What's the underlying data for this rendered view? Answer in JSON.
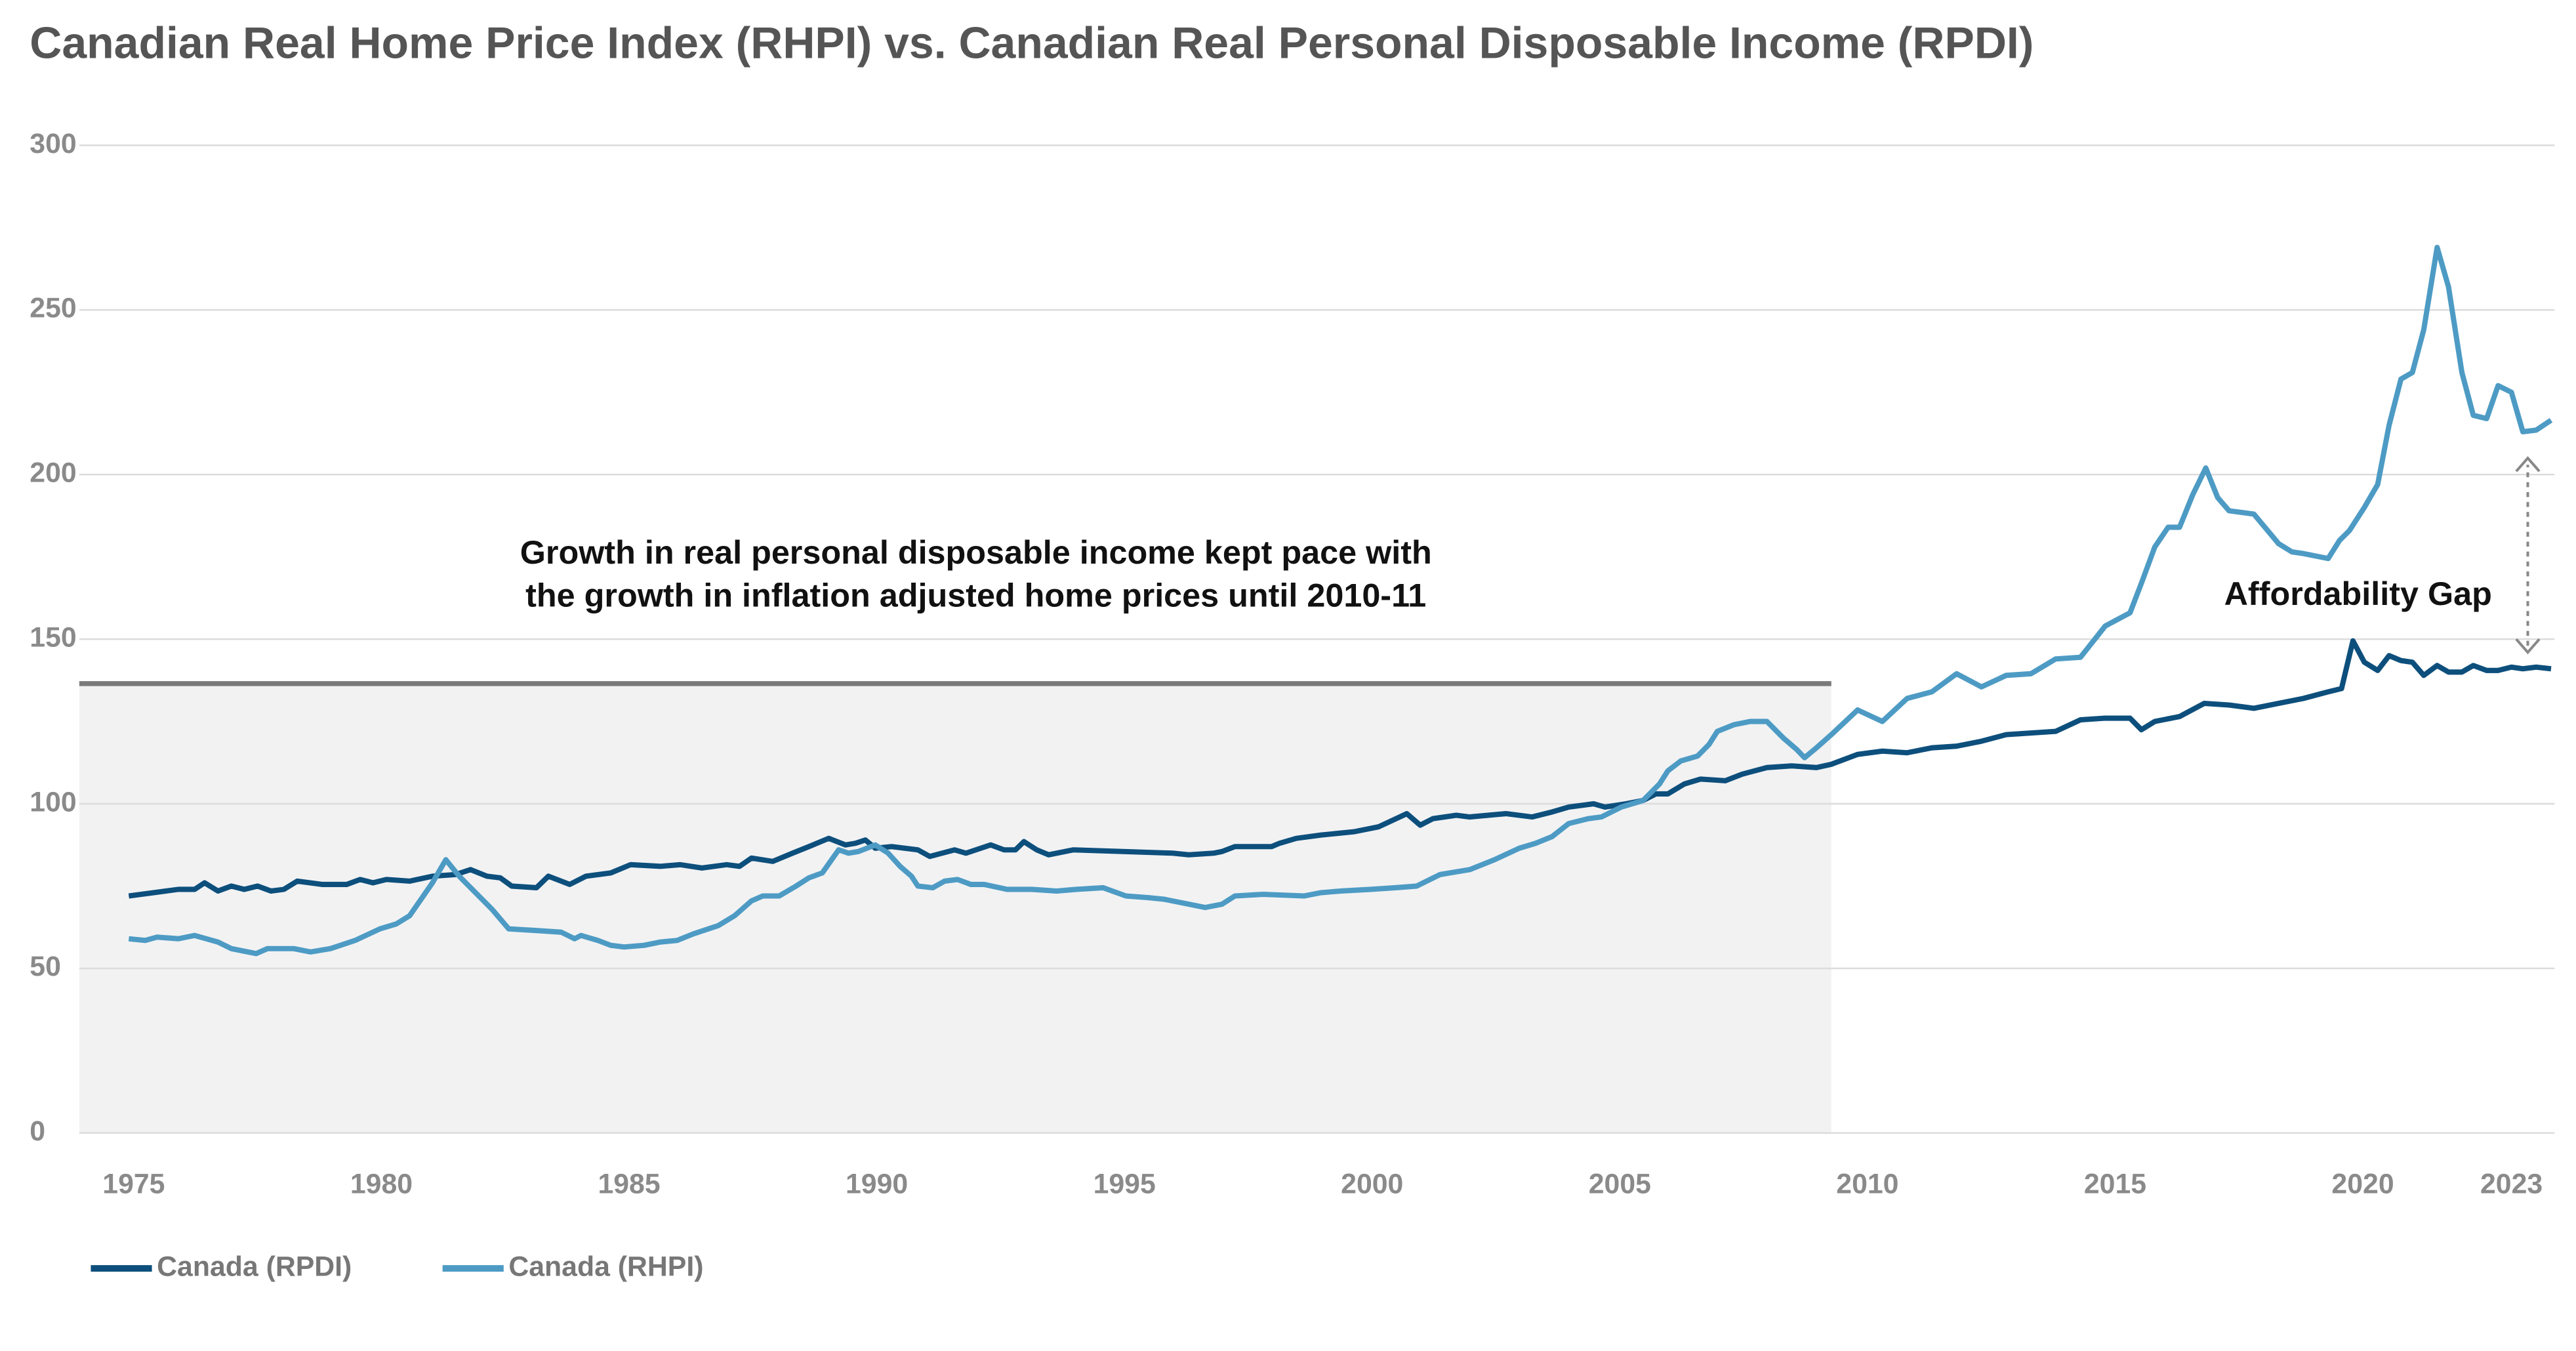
{
  "chart_data": {
    "type": "line",
    "title": "Canadian Real Home Price Index (RHPI) vs. Canadian Real Personal Disposable Income (RPDI)",
    "xlim": [
      1973.9,
      2023.87
    ],
    "ylim": [
      0,
      300
    ],
    "xticks": [
      1975,
      1980,
      1985,
      1990,
      1995,
      2000,
      2005,
      2010,
      2015,
      2020,
      2023
    ],
    "yticks": [
      0,
      50,
      100,
      150,
      200,
      250,
      300
    ],
    "grid": true,
    "legend": "bottom-left",
    "highlight": {
      "x": [
        1973.9,
        2009.27
      ],
      "y": 136.5
    },
    "annotation": [
      "Growth in real personal disposable income kept pace with",
      "the growth in inflation adjusted home prices until 2010-11"
    ],
    "gap": {
      "label": "Affordability Gap",
      "x": 2023.33,
      "from": 146,
      "to": 205
    },
    "series": [
      {
        "name": "Canada (RPDI)",
        "color": "#0d4f7c",
        "x": [
          1974.9,
          1975.4,
          1975.9,
          1976.23,
          1976.43,
          1976.7,
          1976.97,
          1977.23,
          1977.5,
          1977.77,
          1978.03,
          1978.3,
          1978.8,
          1979.3,
          1979.57,
          1979.83,
          1980.1,
          1980.57,
          1981.03,
          1981.5,
          1981.8,
          1982.13,
          1982.4,
          1982.63,
          1983.13,
          1983.37,
          1983.8,
          1984.13,
          1984.63,
          1985.03,
          1985.63,
          1986.03,
          1986.47,
          1986.97,
          1987.23,
          1987.47,
          1987.9,
          1988.3,
          1988.63,
          1989.03,
          1989.37,
          1989.57,
          1989.77,
          1989.97,
          1990.3,
          1990.83,
          1991.07,
          1991.57,
          1991.8,
          1992.3,
          1992.57,
          1992.8,
          1992.97,
          1993.23,
          1993.47,
          1993.97,
          1994.97,
          1995.97,
          1996.3,
          1996.8,
          1996.97,
          1997.23,
          1997.97,
          1998.13,
          1998.47,
          1998.97,
          1999.63,
          2000.13,
          2000.7,
          2000.97,
          2001.23,
          2001.7,
          2001.97,
          2002.7,
          2003.23,
          2003.63,
          2003.97,
          2004.47,
          2004.7,
          2005.13,
          2005.47,
          2005.73,
          2005.97,
          2006.3,
          2006.63,
          2007.13,
          2007.47,
          2007.97,
          2008.47,
          2008.97,
          2009.27,
          2009.8,
          2010.3,
          2010.8,
          2011.3,
          2011.8,
          2012.3,
          2012.8,
          2013.3,
          2013.8,
          2014.3,
          2014.8,
          2015.3,
          2015.53,
          2015.8,
          2016.3,
          2016.8,
          2017.3,
          2017.8,
          2018.3,
          2018.8,
          2019.3,
          2019.57,
          2019.8,
          2020.03,
          2020.3,
          2020.53,
          2020.77,
          2021.0,
          2021.23,
          2021.5,
          2021.73,
          2022.0,
          2022.23,
          2022.5,
          2022.73,
          2023.0,
          2023.23,
          2023.5,
          2023.8
        ],
        "values": [
          72,
          73,
          74,
          74,
          76,
          73.5,
          75,
          74,
          75,
          73.5,
          74,
          76.5,
          75.5,
          75.5,
          77,
          76,
          77,
          76.5,
          78,
          78.5,
          80,
          78,
          77.5,
          75,
          74.5,
          78,
          75.5,
          78,
          79,
          81.5,
          81,
          81.5,
          80.5,
          81.5,
          81,
          83.5,
          82.5,
          85,
          87,
          89.5,
          87.5,
          88,
          89,
          86.5,
          87,
          86,
          84,
          86,
          85,
          87.5,
          86,
          86,
          88.5,
          86,
          84.5,
          86,
          85.5,
          85,
          84.5,
          85,
          85.5,
          87,
          87,
          88,
          89.5,
          90.5,
          91.5,
          93,
          97,
          93.5,
          95.5,
          96.5,
          96,
          97,
          96,
          97.5,
          99,
          100,
          99,
          100,
          101,
          103,
          103,
          106,
          107.5,
          107,
          109,
          111,
          111.5,
          111,
          112,
          115,
          116,
          115.5,
          117,
          117.5,
          119,
          121,
          121.5,
          122,
          125.5,
          126,
          126,
          122.5,
          125,
          126.5,
          130.5,
          130,
          129,
          130.5,
          132,
          134,
          135,
          149.5,
          143,
          140.5,
          145,
          143.5,
          143,
          139,
          142,
          140,
          140,
          142,
          140.5,
          140.5,
          141.5,
          141,
          141.5,
          141
        ]
      },
      {
        "name": "Canada (RHPI)",
        "color": "#4d9bc4",
        "x": [
          1974.9,
          1975.23,
          1975.47,
          1975.9,
          1976.23,
          1976.7,
          1976.97,
          1977.47,
          1977.7,
          1978.23,
          1978.57,
          1978.97,
          1979.47,
          1979.97,
          1980.3,
          1980.57,
          1981.03,
          1981.3,
          1981.57,
          1981.9,
          1982.23,
          1982.57,
          1983.13,
          1983.63,
          1983.9,
          1984.03,
          1984.37,
          1984.63,
          1984.9,
          1985.3,
          1985.63,
          1985.97,
          1986.3,
          1986.8,
          1987.13,
          1987.47,
          1987.7,
          1988.03,
          1988.37,
          1988.63,
          1988.9,
          1989.23,
          1989.43,
          1989.63,
          1989.97,
          1990.23,
          1990.47,
          1990.7,
          1990.83,
          1991.13,
          1991.37,
          1991.63,
          1991.9,
          1992.17,
          1992.63,
          1993.13,
          1993.63,
          1994.03,
          1994.57,
          1995.03,
          1995.47,
          1995.8,
          1996.3,
          1996.63,
          1996.97,
          1997.23,
          1997.8,
          1998.63,
          1998.97,
          1999.37,
          1999.97,
          2000.47,
          2000.9,
          2001.37,
          2001.97,
          2002.47,
          2002.97,
          2003.3,
          2003.63,
          2003.97,
          2004.37,
          2004.63,
          2005.03,
          2005.47,
          2005.8,
          2005.97,
          2006.23,
          2006.57,
          2006.8,
          2006.97,
          2007.3,
          2007.63,
          2007.97,
          2008.3,
          2008.57,
          2008.73,
          2008.97,
          2009.27,
          2009.8,
          2010.3,
          2010.8,
          2011.3,
          2011.8,
          2012.3,
          2012.8,
          2013.3,
          2013.8,
          2014.3,
          2014.8,
          2015.3,
          2015.53,
          2015.8,
          2016.07,
          2016.3,
          2016.57,
          2016.83,
          2017.07,
          2017.3,
          2017.8,
          2018.3,
          2018.57,
          2018.8,
          2019.3,
          2019.53,
          2019.73,
          2020.03,
          2020.3,
          2020.53,
          2020.77,
          2021.0,
          2021.23,
          2021.5,
          2021.73,
          2022.0,
          2022.23,
          2022.5,
          2022.73,
          2023.0,
          2023.23,
          2023.5,
          2023.8
        ],
        "values": [
          59,
          58.5,
          59.5,
          59,
          60,
          58,
          56,
          54.5,
          56,
          56,
          55,
          56,
          58.5,
          62,
          63.5,
          66,
          76,
          83,
          78,
          73,
          68,
          62,
          61.5,
          61,
          59,
          60,
          58.5,
          57,
          56.5,
          57,
          58,
          58.5,
          60.5,
          63,
          66,
          70.5,
          72,
          72,
          75,
          77.5,
          79,
          86,
          85,
          85.5,
          87.5,
          85,
          81,
          78,
          75,
          74.5,
          76.5,
          77,
          75.5,
          75.5,
          74,
          74,
          73.5,
          74,
          74.5,
          72,
          71.5,
          71,
          69.5,
          68.5,
          69.5,
          72,
          72.5,
          72,
          73,
          73.5,
          74,
          74.5,
          75,
          78.5,
          80,
          83,
          86.5,
          88,
          90,
          94,
          95.5,
          96,
          99,
          101,
          106,
          110,
          113,
          114.5,
          118,
          122,
          124,
          125,
          125,
          120,
          116.5,
          114,
          117,
          121,
          128.5,
          125,
          132,
          134,
          139.5,
          135.5,
          139,
          139.5,
          144,
          144.5,
          154,
          158,
          167,
          178,
          184,
          184,
          194,
          202,
          193,
          189,
          188,
          179,
          176.5,
          176,
          174.5,
          180,
          183,
          190,
          197,
          215,
          229,
          231,
          244,
          269,
          257,
          231,
          218,
          217,
          227,
          225,
          213,
          213.5,
          216.5
        ]
      }
    ]
  }
}
